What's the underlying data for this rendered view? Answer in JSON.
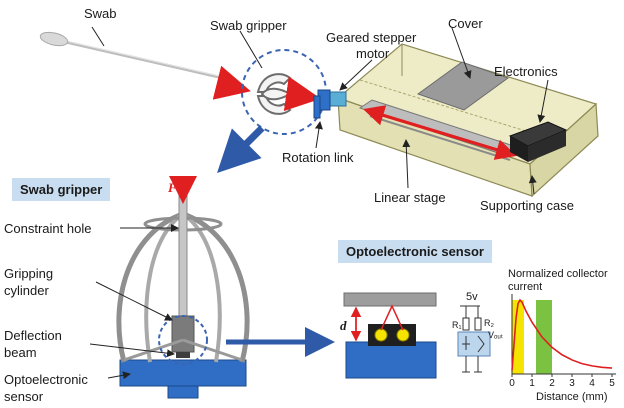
{
  "labels": {
    "swab": "Swab",
    "swab_gripper": "Swab gripper",
    "geared_stepper_motor_line1": "Geared stepper",
    "geared_stepper_motor_line2": "motor",
    "cover": "Cover",
    "electronics": "Electronics",
    "rotation_link": "Rotation link",
    "linear_stage": "Linear stage",
    "supporting_case": "Supporting case",
    "constraint_hole": "Constraint hole",
    "gripping_cylinder_line1": "Gripping",
    "gripping_cylinder_line2": "cylinder",
    "deflection_beam_line1": "Deflection",
    "deflection_beam_line2": "beam",
    "optoelectronic_sensor_line1": "Optoelectronic",
    "optoelectronic_sensor_line2": "sensor",
    "force": "F",
    "distance_symbol": "d"
  },
  "panels": {
    "swab_gripper_title": "Swab gripper",
    "optoelectronic_title": "Optoelectronic sensor"
  },
  "circuit": {
    "supply": "5v",
    "r1": "R₁",
    "r2": "R₂",
    "vout": "Vₒᵤₜ"
  },
  "chart_data": {
    "type": "line",
    "title": "Normalized collector current",
    "xlabel": "Distance (mm)",
    "ylabel": "",
    "x_ticks": [
      "0",
      "1",
      "2",
      "3",
      "4",
      "5"
    ],
    "xlim": [
      0,
      5
    ],
    "ylim": [
      0,
      1
    ],
    "series": [
      {
        "x": [
          0,
          0.1,
          0.2,
          0.3,
          0.4,
          0.5,
          0.7,
          1.0,
          1.5,
          2.0,
          2.5,
          3.0,
          3.5,
          4.0,
          4.5,
          5.0
        ],
        "values": [
          0.05,
          0.4,
          0.75,
          0.95,
          1.0,
          0.97,
          0.85,
          0.7,
          0.5,
          0.36,
          0.26,
          0.19,
          0.14,
          0.11,
          0.09,
          0.08
        ]
      }
    ],
    "highlight_regions": [
      {
        "from": 0,
        "to": 0.6,
        "color": "#f5e400"
      },
      {
        "from": 1.2,
        "to": 2.0,
        "color": "#7cc242"
      }
    ]
  }
}
